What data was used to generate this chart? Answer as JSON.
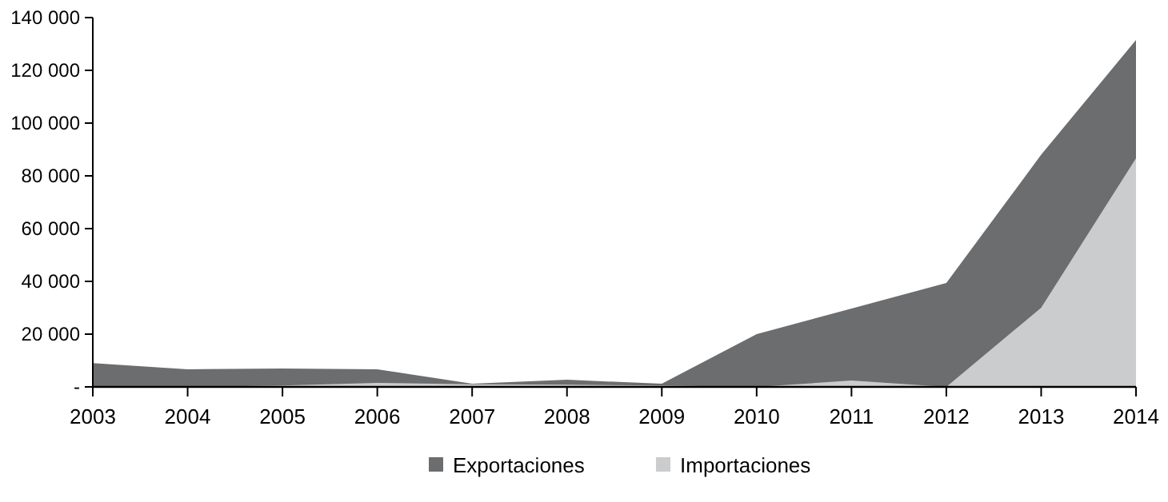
{
  "chart_data": {
    "type": "area",
    "categories": [
      "2003",
      "2004",
      "2005",
      "2006",
      "2007",
      "2008",
      "2009",
      "2010",
      "2011",
      "2012",
      "2013",
      "2014"
    ],
    "series": [
      {
        "name": "Exportaciones",
        "color": "#6b6d6f",
        "values": [
          9000,
          6700,
          7000,
          6700,
          1200,
          2700,
          1200,
          20000,
          29700,
          39400,
          88000,
          131500
        ]
      },
      {
        "name": "Importaciones",
        "color": "#cbcccd",
        "values": [
          0,
          0,
          500,
          1500,
          1000,
          800,
          500,
          0,
          2400,
          0,
          30000,
          86700
        ]
      }
    ],
    "ylim": [
      0,
      140000
    ],
    "yticks": [
      {
        "value": 0,
        "label": "-"
      },
      {
        "value": 20000,
        "label": "20 000"
      },
      {
        "value": 40000,
        "label": "40 000"
      },
      {
        "value": 60000,
        "label": "60 000"
      },
      {
        "value": 80000,
        "label": "80 000"
      },
      {
        "value": 100000,
        "label": "100 000"
      },
      {
        "value": 120000,
        "label": "120 000"
      },
      {
        "value": 140000,
        "label": "140 000"
      }
    ],
    "legend": "bottom"
  }
}
